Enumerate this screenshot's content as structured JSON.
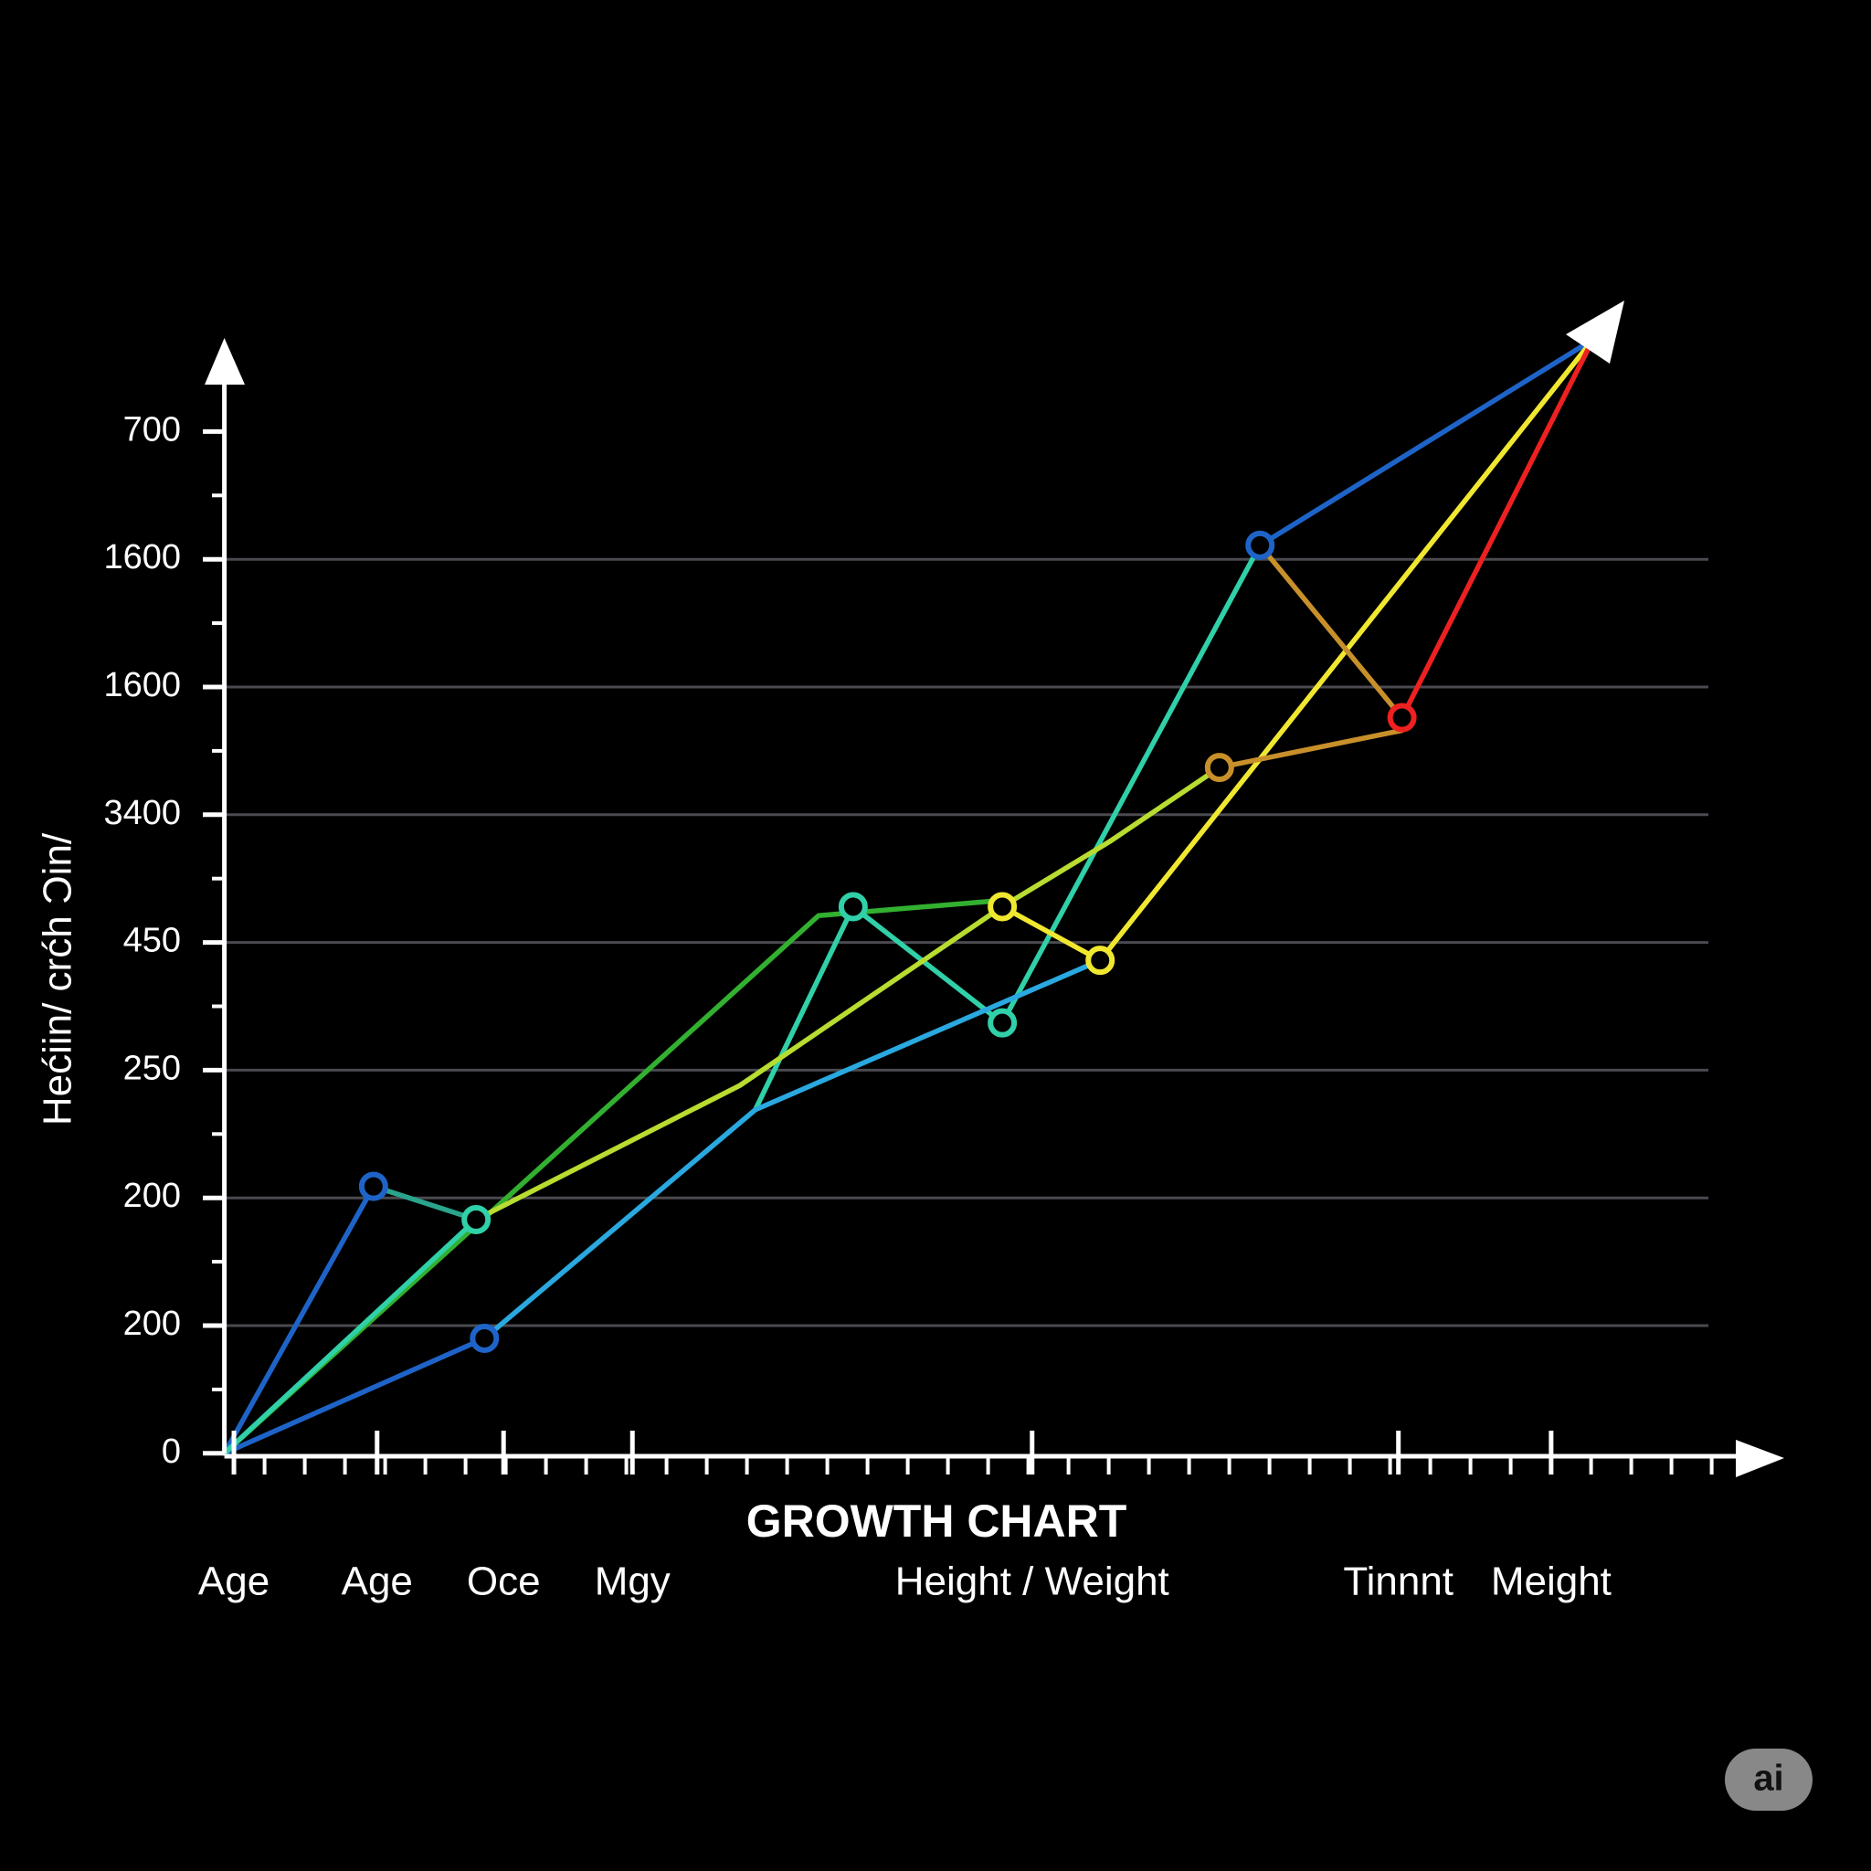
{
  "chart_data": {
    "type": "line",
    "x_label": "GROWTH CHART",
    "y_label": "Hećiin/ crćh Ɔin/",
    "xlim": [
      0,
      13
    ],
    "ylim": [
      0,
      8.7
    ],
    "grid": true,
    "xticks": [
      {
        "value": 0.08,
        "label": "Age"
      },
      {
        "value": 1.28,
        "label": "Age"
      },
      {
        "value": 2.34,
        "label": "Oce"
      },
      {
        "value": 3.42,
        "label": "Mgy"
      },
      {
        "value": 6.77,
        "label": "Height / Weight"
      },
      {
        "value": 9.84,
        "label": "Tinnnt"
      },
      {
        "value": 11.12,
        "label": "Meight"
      }
    ],
    "yticks": [
      0,
      {
        "value": 1,
        "label": "200"
      },
      {
        "value": 2,
        "label": "200"
      },
      {
        "value": 3,
        "label": "250"
      },
      {
        "value": 4,
        "label": "450"
      },
      {
        "value": 5,
        "label": "3400"
      },
      {
        "value": 6,
        "label": "1600"
      },
      {
        "value": 7,
        "label": "1600"
      },
      {
        "value": 8,
        "label": "700"
      }
    ],
    "series": [
      {
        "color": "#1e64c8",
        "x": [
          0,
          1.25,
          null,
          0,
          2.18,
          null,
          8.68,
          11.47
        ],
        "values": [
          0,
          2.09,
          null,
          0,
          0.9,
          null,
          7.11,
          8.72
        ],
        "markers": [
          false,
          true,
          null,
          false,
          true,
          null,
          true,
          false
        ]
      },
      {
        "color": "#2aa58c",
        "x": [
          1.25,
          2.11
        ],
        "values": [
          2.09,
          1.83
        ],
        "markers": [
          false,
          false
        ]
      },
      {
        "color": "#32b030",
        "x": [
          0,
          4.98,
          6.52
        ],
        "values": [
          0,
          4.21,
          4.33
        ],
        "markers": [
          false,
          false,
          false
        ]
      },
      {
        "color": "#30d0a8",
        "x": [
          0,
          2.11,
          null,
          4.45,
          5.27,
          6.52,
          8.68
        ],
        "values": [
          0,
          1.83,
          null,
          2.69,
          4.28,
          3.37,
          7.11
        ],
        "markers": [
          false,
          true,
          null,
          false,
          true,
          true,
          false
        ]
      },
      {
        "color": "#b8dc30",
        "x": [
          2.11,
          4.32,
          6.52,
          7.42,
          8.34
        ],
        "values": [
          1.83,
          2.88,
          4.28,
          4.79,
          5.37
        ],
        "markers": [
          false,
          false,
          false,
          false,
          false
        ]
      },
      {
        "color": "#2aa8e0",
        "x": [
          2.18,
          4.45,
          7.34
        ],
        "values": [
          0.9,
          2.69,
          3.86
        ],
        "markers": [
          false,
          false,
          false
        ]
      },
      {
        "color": "#f0e830",
        "x": [
          6.52,
          7.34,
          11.47
        ],
        "values": [
          4.28,
          3.86,
          8.72
        ],
        "markers": [
          true,
          true,
          false
        ]
      },
      {
        "color": "#c8902a",
        "x": [
          8.68,
          9.87,
          null,
          8.34,
          9.87
        ],
        "values": [
          7.11,
          5.76,
          null,
          5.37,
          5.66
        ],
        "markers": [
          false,
          false,
          null,
          true,
          false
        ]
      },
      {
        "color": "#ee2020",
        "x": [
          9.87,
          11.47
        ],
        "values": [
          5.76,
          8.72
        ],
        "markers": [
          true,
          false
        ]
      }
    ]
  },
  "watermark": "ai"
}
